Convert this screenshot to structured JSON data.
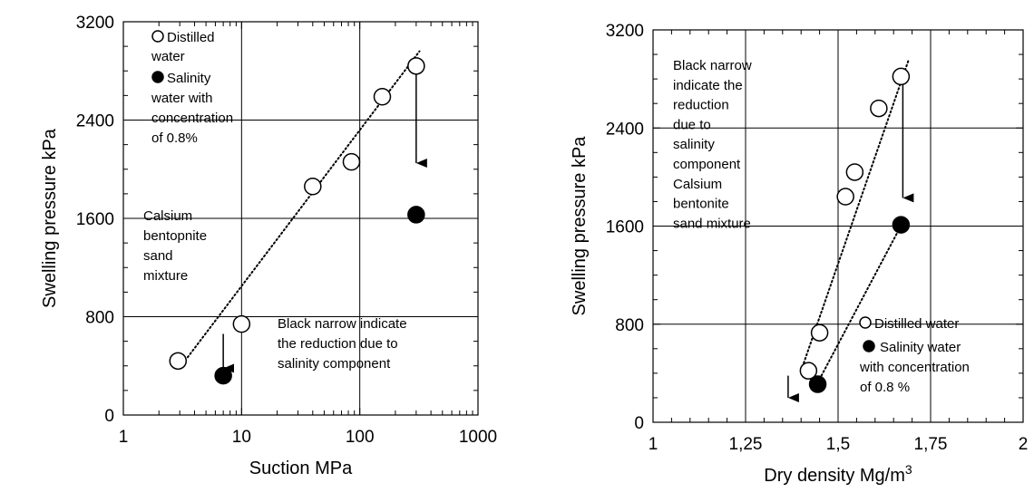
{
  "chart_data": [
    {
      "type": "scatter",
      "xlabel": "Suction MPa",
      "ylabel": "Swelling pressure  kPa",
      "x_scale": "log",
      "xlim": [
        1,
        1000
      ],
      "ylim": [
        0,
        3200
      ],
      "x_ticks": [
        "1",
        "10",
        "100",
        "1000"
      ],
      "y_ticks": [
        "0",
        "800",
        "1600",
        "2400",
        "3200"
      ],
      "grid": true,
      "series": [
        {
          "name": "Distilled water",
          "marker": "open-circle",
          "x": [
            2.9,
            10,
            40,
            85,
            155,
            300
          ],
          "y": [
            440,
            740,
            1860,
            2060,
            2590,
            2840
          ]
        },
        {
          "name": "Salinity water with concentration of 0.8%",
          "marker": "filled-circle",
          "x": [
            7,
            300
          ],
          "y": [
            320,
            1630
          ]
        }
      ],
      "trendlines": [
        {
          "style": "dotted",
          "x": [
            3.5,
            320
          ],
          "y": [
            470,
            2960
          ]
        }
      ],
      "arrows": [
        {
          "x": 7,
          "from": 660,
          "to": 380
        },
        {
          "x": 300,
          "from": 2780,
          "to": 2050
        }
      ],
      "legend_lines": [
        "Distilled",
        "water",
        "Salinity",
        "water with",
        "concentration",
        "of 0.8%"
      ],
      "annotation_material": [
        "Calsium",
        "bentopnite",
        "sand",
        "mixture"
      ],
      "annotation_arrow": [
        "Black narrow indicate",
        "the reduction due to",
        "salinity component"
      ]
    },
    {
      "type": "scatter",
      "xlabel": "Dry density  Mg/m",
      "xlabel_sup": "3",
      "ylabel": "Swelling pressure  kPa",
      "xlim": [
        1,
        2
      ],
      "ylim": [
        0,
        3200
      ],
      "x_ticks": [
        "1",
        "1,25",
        "1,5",
        "1,75",
        "2"
      ],
      "y_ticks": [
        "0",
        "800",
        "1600",
        "2400",
        "3200"
      ],
      "grid": true,
      "series": [
        {
          "name": "Distilled water",
          "marker": "open-circle",
          "x": [
            1.42,
            1.45,
            1.52,
            1.545,
            1.61,
            1.67
          ],
          "y": [
            420,
            730,
            1840,
            2040,
            2560,
            2820
          ]
        },
        {
          "name": "Salinity water with concentration of 0.8 %",
          "marker": "filled-circle",
          "x": [
            1.445,
            1.67
          ],
          "y": [
            310,
            1610
          ]
        }
      ],
      "trendlines": [
        {
          "style": "dotted",
          "x": [
            1.4,
            1.69
          ],
          "y": [
            420,
            2950
          ]
        },
        {
          "style": "dotted",
          "x": [
            1.455,
            1.68
          ],
          "y": [
            380,
            1660
          ]
        }
      ],
      "arrows": [
        {
          "x": 1.365,
          "from": 380,
          "to": 200
        },
        {
          "x": 1.675,
          "from": 2760,
          "to": 1830
        }
      ],
      "legend_lines": [
        "Distilled water",
        "Salinity water",
        "with concentration",
        "of 0.8 %"
      ],
      "annotation_material": [
        "Black narrow",
        "indicate the",
        "reduction",
        "due to",
        "salinity",
        "component",
        "Calsium",
        "bentonite",
        "sand mixture"
      ]
    }
  ]
}
